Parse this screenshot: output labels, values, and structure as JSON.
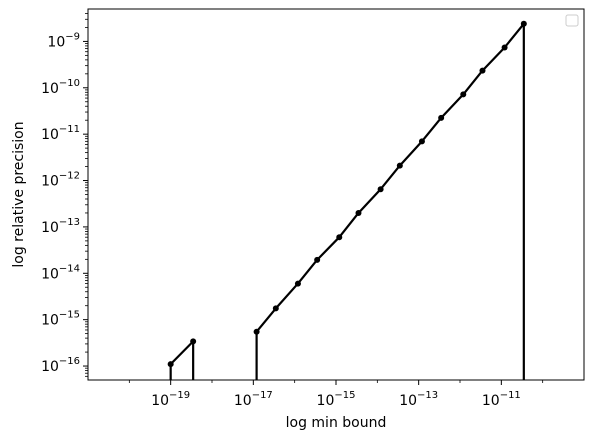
{
  "chart_data": {
    "type": "line",
    "xscale": "log",
    "yscale": "log",
    "xlabel": "log min bound",
    "ylabel": "log relative precision",
    "xlim": [
      1e-21,
      1e-09
    ],
    "ylim": [
      5e-17,
      5e-09
    ],
    "x_ticks": [
      {
        "value": 1e-19,
        "label": "10^{-19}"
      },
      {
        "value": 1e-17,
        "label": "10^{-17}"
      },
      {
        "value": 1e-15,
        "label": "10^{-15}"
      },
      {
        "value": 1e-13,
        "label": "10^{-13}"
      },
      {
        "value": 1e-11,
        "label": "10^{-11}"
      }
    ],
    "y_ticks": [
      {
        "value": 1e-16,
        "label": "10^{-16}"
      },
      {
        "value": 1e-15,
        "label": "10^{-15}"
      },
      {
        "value": 1e-14,
        "label": "10^{-14}"
      },
      {
        "value": 1e-13,
        "label": "10^{-13}"
      },
      {
        "value": 1e-12,
        "label": "10^{-12}"
      },
      {
        "value": 1e-11,
        "label": "10^{-11}"
      },
      {
        "value": 1e-10,
        "label": "10^{-10}"
      },
      {
        "value": 1e-09,
        "label": "10^{-9}"
      }
    ],
    "grid": false,
    "legend": "top-right",
    "legend_entries": [],
    "color": "#000000",
    "series": [
      {
        "values_to_floor": true,
        "points": [
          {
            "x": 1e-19,
            "y": 1.1e-16
          },
          {
            "x": 3.5e-19,
            "y": 3.4e-16
          }
        ]
      },
      {
        "values_to_floor": true,
        "points": [
          {
            "x": 1.2e-17,
            "y": 5.5e-16
          },
          {
            "x": 3.5e-17,
            "y": 1.75e-15
          },
          {
            "x": 1.2e-16,
            "y": 6e-15
          },
          {
            "x": 3.5e-16,
            "y": 1.95e-14
          },
          {
            "x": 1.2e-15,
            "y": 6e-14
          },
          {
            "x": 3.5e-15,
            "y": 2e-13
          },
          {
            "x": 1.2e-14,
            "y": 6.5e-13
          },
          {
            "x": 3.5e-14,
            "y": 2.1e-12
          },
          {
            "x": 1.2e-13,
            "y": 7e-12
          },
          {
            "x": 3.5e-13,
            "y": 2.25e-11
          },
          {
            "x": 1.2e-12,
            "y": 7.2e-11
          },
          {
            "x": 3.5e-12,
            "y": 2.35e-10
          },
          {
            "x": 1.2e-11,
            "y": 7.4e-10
          },
          {
            "x": 3.5e-11,
            "y": 2.4e-09
          }
        ]
      }
    ]
  }
}
